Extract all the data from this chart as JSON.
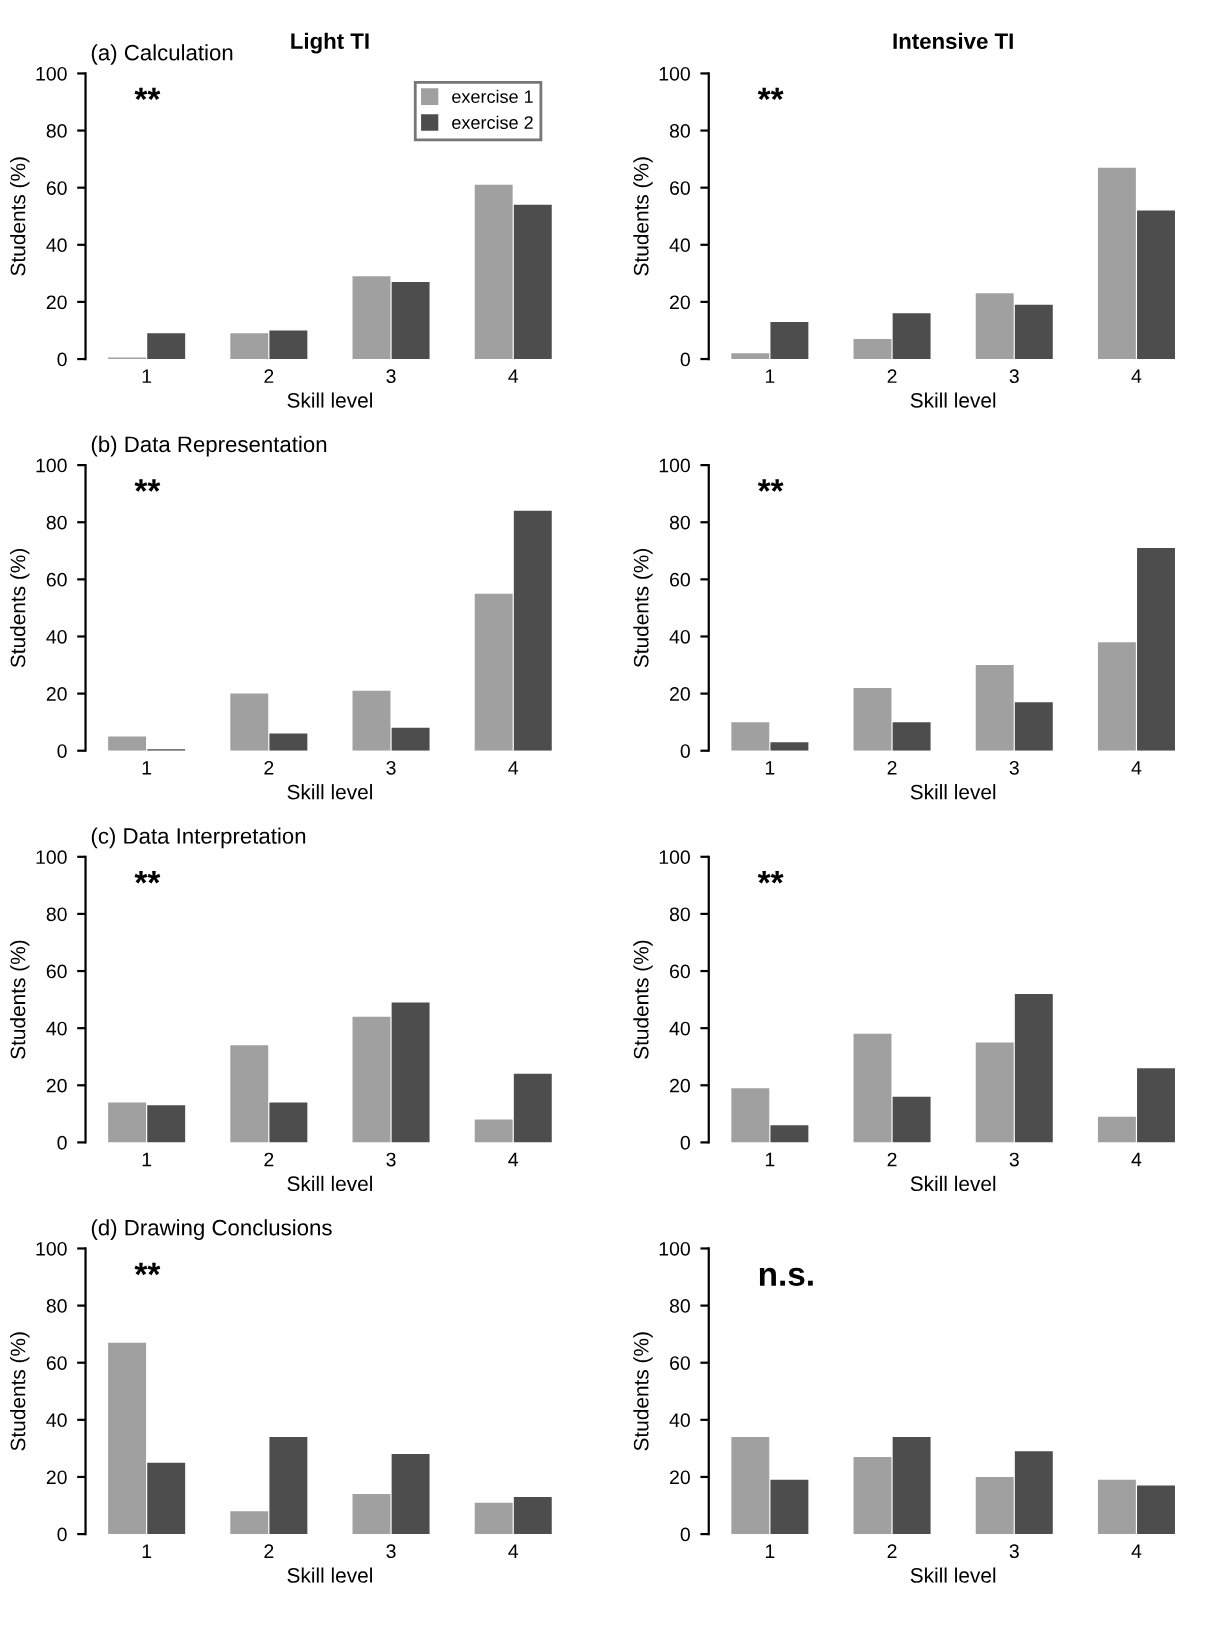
{
  "chart_data": [
    {
      "type": "bar",
      "title": "(a) Calculation",
      "subtitle": "Light TI",
      "xlabel": "Skill level",
      "ylabel": "Students (%)",
      "categories": [
        "1",
        "2",
        "3",
        "4"
      ],
      "ylim": [
        0,
        100
      ],
      "yticks": [
        0,
        20,
        40,
        60,
        80,
        100
      ],
      "legend": "top right",
      "annotations": [
        "**"
      ],
      "series": [
        {
          "name": "exercise 1",
          "color": "#a0a0a0",
          "values": [
            0.5,
            9,
            29,
            61
          ]
        },
        {
          "name": "exercise 2",
          "color": "#4d4d4d",
          "values": [
            9,
            10,
            27,
            54
          ]
        }
      ]
    },
    {
      "type": "bar",
      "subtitle": "Intensive TI",
      "xlabel": "Skill level",
      "ylabel": "Students (%)",
      "categories": [
        "1",
        "2",
        "3",
        "4"
      ],
      "ylim": [
        0,
        100
      ],
      "yticks": [
        0,
        20,
        40,
        60,
        80,
        100
      ],
      "annotations": [
        "**"
      ],
      "series": [
        {
          "color": "#a0a0a0",
          "values": [
            2,
            7,
            23,
            67
          ]
        },
        {
          "color": "#4d4d4d",
          "values": [
            13,
            16,
            19,
            52
          ]
        }
      ]
    },
    {
      "type": "bar",
      "title": "(b) Data Representation",
      "xlabel": "Skill level",
      "ylabel": "Students (%)",
      "categories": [
        "1",
        "2",
        "3",
        "4"
      ],
      "ylim": [
        0,
        100
      ],
      "yticks": [
        0,
        20,
        40,
        60,
        80,
        100
      ],
      "annotations": [
        "**"
      ],
      "series": [
        {
          "color": "#a0a0a0",
          "values": [
            5,
            20,
            21,
            55
          ]
        },
        {
          "color": "#4d4d4d",
          "values": [
            0.5,
            6,
            8,
            84
          ]
        }
      ]
    },
    {
      "type": "bar",
      "xlabel": "Skill level",
      "ylabel": "Students (%)",
      "categories": [
        "1",
        "2",
        "3",
        "4"
      ],
      "ylim": [
        0,
        100
      ],
      "yticks": [
        0,
        20,
        40,
        60,
        80,
        100
      ],
      "annotations": [
        "**"
      ],
      "series": [
        {
          "color": "#a0a0a0",
          "values": [
            10,
            22,
            30,
            38
          ]
        },
        {
          "color": "#4d4d4d",
          "values": [
            3,
            10,
            17,
            71
          ]
        }
      ]
    },
    {
      "type": "bar",
      "title": "(c) Data Interpretation",
      "xlabel": "Skill level",
      "ylabel": "Students (%)",
      "categories": [
        "1",
        "2",
        "3",
        "4"
      ],
      "ylim": [
        0,
        100
      ],
      "yticks": [
        0,
        20,
        40,
        60,
        80,
        100
      ],
      "annotations": [
        "**"
      ],
      "series": [
        {
          "color": "#a0a0a0",
          "values": [
            14,
            34,
            44,
            8
          ]
        },
        {
          "color": "#4d4d4d",
          "values": [
            13,
            14,
            49,
            24
          ]
        }
      ]
    },
    {
      "type": "bar",
      "xlabel": "Skill level",
      "ylabel": "Students (%)",
      "categories": [
        "1",
        "2",
        "3",
        "4"
      ],
      "ylim": [
        0,
        100
      ],
      "yticks": [
        0,
        20,
        40,
        60,
        80,
        100
      ],
      "annotations": [
        "**"
      ],
      "series": [
        {
          "color": "#a0a0a0",
          "values": [
            19,
            38,
            35,
            9
          ]
        },
        {
          "color": "#4d4d4d",
          "values": [
            6,
            16,
            52,
            26
          ]
        }
      ]
    },
    {
      "type": "bar",
      "title": "(d) Drawing Conclusions",
      "xlabel": "Skill level",
      "ylabel": "Students (%)",
      "categories": [
        "1",
        "2",
        "3",
        "4"
      ],
      "ylim": [
        0,
        100
      ],
      "yticks": [
        0,
        20,
        40,
        60,
        80,
        100
      ],
      "annotations": [
        "**"
      ],
      "series": [
        {
          "color": "#a0a0a0",
          "values": [
            67,
            8,
            14,
            11
          ]
        },
        {
          "color": "#4d4d4d",
          "values": [
            25,
            34,
            28,
            13
          ]
        }
      ]
    },
    {
      "type": "bar",
      "xlabel": "Skill level",
      "ylabel": "Students (%)",
      "categories": [
        "1",
        "2",
        "3",
        "4"
      ],
      "ylim": [
        0,
        100
      ],
      "yticks": [
        0,
        20,
        40,
        60,
        80,
        100
      ],
      "annotations": [
        "n.s."
      ],
      "series": [
        {
          "color": "#a0a0a0",
          "values": [
            34,
            27,
            20,
            19
          ]
        },
        {
          "color": "#4d4d4d",
          "values": [
            19,
            34,
            29,
            17
          ]
        }
      ]
    }
  ]
}
